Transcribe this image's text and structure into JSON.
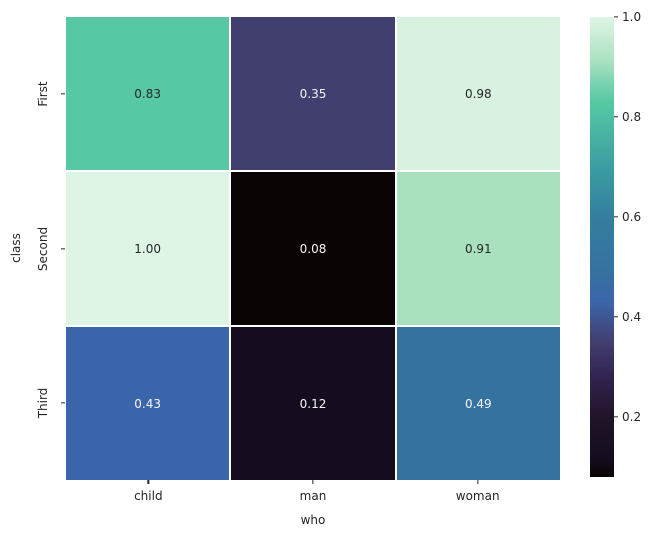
{
  "figure": {
    "background": "#ffffff",
    "text_color": "#262626"
  },
  "chart_data": {
    "type": "heatmap",
    "colormap": "mako",
    "title": "",
    "xlabel": "who",
    "ylabel": "class",
    "columns": [
      "child",
      "man",
      "woman"
    ],
    "rows": [
      "First",
      "Second",
      "Third"
    ],
    "values": [
      [
        0.83,
        0.35,
        0.98
      ],
      [
        1.0,
        0.08,
        0.91
      ],
      [
        0.43,
        0.12,
        0.49
      ]
    ],
    "cell_labels": [
      [
        "0.83",
        "0.35",
        "0.98"
      ],
      [
        "1.00",
        "0.08",
        "0.91"
      ],
      [
        "0.43",
        "0.12",
        "0.49"
      ]
    ],
    "cell_colors": [
      [
        "#57C8A3",
        "#413E70",
        "#D8F1E0"
      ],
      [
        "#DEF5E5",
        "#0B0405",
        "#A9E1BF"
      ],
      [
        "#3B65AA",
        "#150D1F",
        "#3572A0"
      ]
    ],
    "cell_text_colors": [
      [
        "#262626",
        "#F5F5F5",
        "#262626"
      ],
      [
        "#262626",
        "#F5F5F5",
        "#262626"
      ],
      [
        "#F5F5F5",
        "#F5F5F5",
        "#F5F5F5"
      ]
    ],
    "grid_line_color": "#ffffff",
    "legend_position": "right-colorbar",
    "colorbar": {
      "vmin": 0.08,
      "vmax": 1.0,
      "ticks": [
        {
          "value": 1.0,
          "label": "1.0"
        },
        {
          "value": 0.8,
          "label": "0.8"
        },
        {
          "value": 0.6,
          "label": "0.6"
        },
        {
          "value": 0.4,
          "label": "0.4"
        },
        {
          "value": 0.2,
          "label": "0.2"
        }
      ],
      "gradient": [
        {
          "value": 0.08,
          "color": "#0B0405"
        },
        {
          "value": 0.12,
          "color": "#150D1F"
        },
        {
          "value": 0.2,
          "color": "#211428"
        },
        {
          "value": 0.28,
          "color": "#322350"
        },
        {
          "value": 0.35,
          "color": "#413E70"
        },
        {
          "value": 0.43,
          "color": "#3B65AA"
        },
        {
          "value": 0.49,
          "color": "#3572A0"
        },
        {
          "value": 0.6,
          "color": "#347E9E"
        },
        {
          "value": 0.7,
          "color": "#3B9EA2"
        },
        {
          "value": 0.83,
          "color": "#57C8A3"
        },
        {
          "value": 0.87,
          "color": "#7DD4B1"
        },
        {
          "value": 0.91,
          "color": "#A9E1BF"
        },
        {
          "value": 1.0,
          "color": "#DEF5E5"
        }
      ]
    }
  }
}
